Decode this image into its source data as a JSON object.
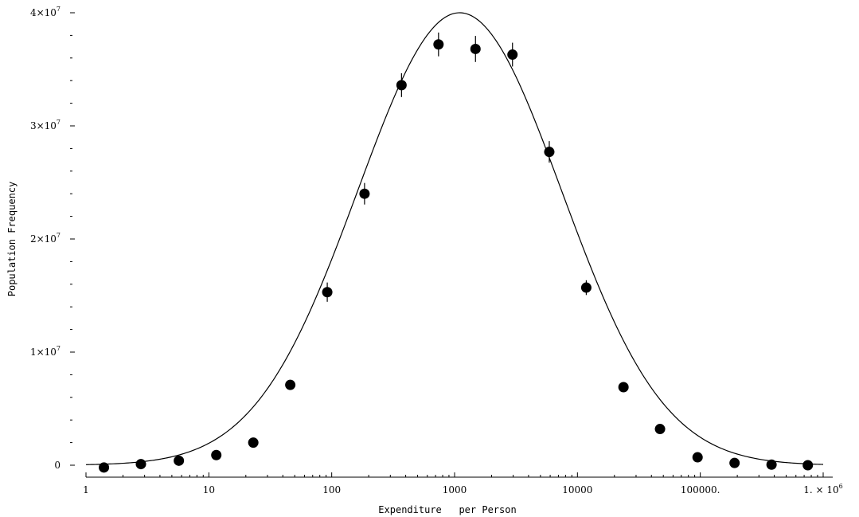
{
  "chart_data": {
    "type": "scatter",
    "title": "",
    "xlabel": "Expenditure   per Person",
    "ylabel": "Population Frequency",
    "x_scale": "log",
    "xlim": [
      1,
      1000000
    ],
    "ylim": [
      0,
      40000000
    ],
    "grid": false,
    "x_tick_labels": [
      "1",
      "10",
      "100",
      "1000",
      "10000",
      "100000.",
      "1. × 10^6"
    ],
    "y_tick_labels": [
      "0",
      "1×10^7",
      "2×10^7",
      "3×10^7",
      "4×10^7"
    ],
    "points": [
      {
        "x": 1.4,
        "y": -200000,
        "err": 0
      },
      {
        "x": 2.8,
        "y": 100000,
        "err": 0
      },
      {
        "x": 5.7,
        "y": 400000,
        "err": 0
      },
      {
        "x": 11.5,
        "y": 900000,
        "err": 0
      },
      {
        "x": 23,
        "y": 2000000,
        "err": 0
      },
      {
        "x": 46,
        "y": 7100000,
        "err": 0
      },
      {
        "x": 92,
        "y": 15300000,
        "err": 500000
      },
      {
        "x": 185,
        "y": 24000000,
        "err": 600000
      },
      {
        "x": 370,
        "y": 33600000,
        "err": 700000
      },
      {
        "x": 740,
        "y": 37200000,
        "err": 700000
      },
      {
        "x": 1480,
        "y": 36800000,
        "err": 800000
      },
      {
        "x": 2960,
        "y": 36300000,
        "err": 700000
      },
      {
        "x": 5900,
        "y": 27700000,
        "err": 600000
      },
      {
        "x": 11800,
        "y": 15700000,
        "err": 300000
      },
      {
        "x": 23700,
        "y": 6900000,
        "err": 0
      },
      {
        "x": 47000,
        "y": 3200000,
        "err": 0
      },
      {
        "x": 95000,
        "y": 700000,
        "err": 0
      },
      {
        "x": 190000,
        "y": 200000,
        "err": 0
      },
      {
        "x": 380000,
        "y": 50000,
        "err": 0
      },
      {
        "x": 750000,
        "y": 0,
        "err": 0
      }
    ],
    "fit_curve": {
      "peak_x": 1100,
      "peak_y": 40000000,
      "sigma_log10": 0.83,
      "x_start": 1,
      "x_end": 1000000
    }
  }
}
